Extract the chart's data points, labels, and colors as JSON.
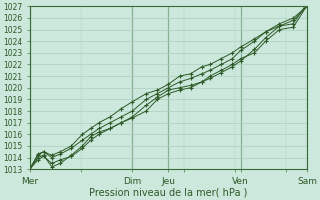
{
  "xlabel": "Pression niveau de la mer( hPa )",
  "bg_color": "#cce8dc",
  "grid_color": "#aacfbf",
  "line_color": "#2d5a27",
  "ylim": [
    1013,
    1027
  ],
  "yticks": [
    1013,
    1014,
    1015,
    1016,
    1017,
    1018,
    1019,
    1020,
    1021,
    1022,
    1023,
    1024,
    1025,
    1026,
    1027
  ],
  "xtick_labels": [
    "Mer",
    "Dim",
    "Jeu",
    "Ven",
    "Sam"
  ],
  "xtick_positions": [
    0,
    37,
    50,
    76,
    100
  ],
  "day_line_positions": [
    0,
    37,
    50,
    76,
    100
  ],
  "series": [
    [
      1013.0,
      1013.8,
      1014.1,
      1013.5,
      1013.8,
      1014.1,
      1014.8,
      1015.5,
      1016.0,
      1016.5,
      1017.0,
      1017.4,
      1018.0,
      1019.0,
      1019.5,
      1019.8,
      1020.0,
      1020.5,
      1021.0,
      1021.5,
      1022.0,
      1022.5,
      1023.0,
      1024.0,
      1025.0,
      1025.2,
      1027.1
    ],
    [
      1013.0,
      1014.0,
      1014.2,
      1013.2,
      1013.5,
      1014.2,
      1015.0,
      1015.8,
      1016.2,
      1016.5,
      1017.0,
      1017.5,
      1018.5,
      1019.2,
      1019.8,
      1020.0,
      1020.2,
      1020.5,
      1020.8,
      1021.3,
      1021.8,
      1022.3,
      1023.3,
      1024.3,
      1025.3,
      1025.5,
      1027.3
    ],
    [
      1013.0,
      1014.2,
      1014.5,
      1014.0,
      1014.3,
      1014.8,
      1015.5,
      1016.0,
      1016.5,
      1017.0,
      1017.5,
      1018.0,
      1019.0,
      1019.5,
      1020.0,
      1020.5,
      1020.8,
      1021.2,
      1021.5,
      1022.0,
      1022.5,
      1023.2,
      1024.0,
      1024.8,
      1025.3,
      1025.8,
      1027.0
    ],
    [
      1013.0,
      1014.3,
      1014.5,
      1014.2,
      1014.5,
      1015.0,
      1016.0,
      1016.5,
      1017.0,
      1017.5,
      1018.2,
      1018.8,
      1019.5,
      1019.8,
      1020.3,
      1021.0,
      1021.2,
      1021.8,
      1022.0,
      1022.5,
      1023.0,
      1023.5,
      1024.2,
      1024.8,
      1025.5,
      1026.0,
      1027.0
    ]
  ],
  "x_positions": [
    0,
    3,
    5,
    8,
    11,
    15,
    19,
    22,
    25,
    29,
    33,
    37,
    42,
    46,
    50,
    54,
    58,
    62,
    65,
    69,
    73,
    76,
    81,
    85,
    90,
    95,
    100
  ]
}
